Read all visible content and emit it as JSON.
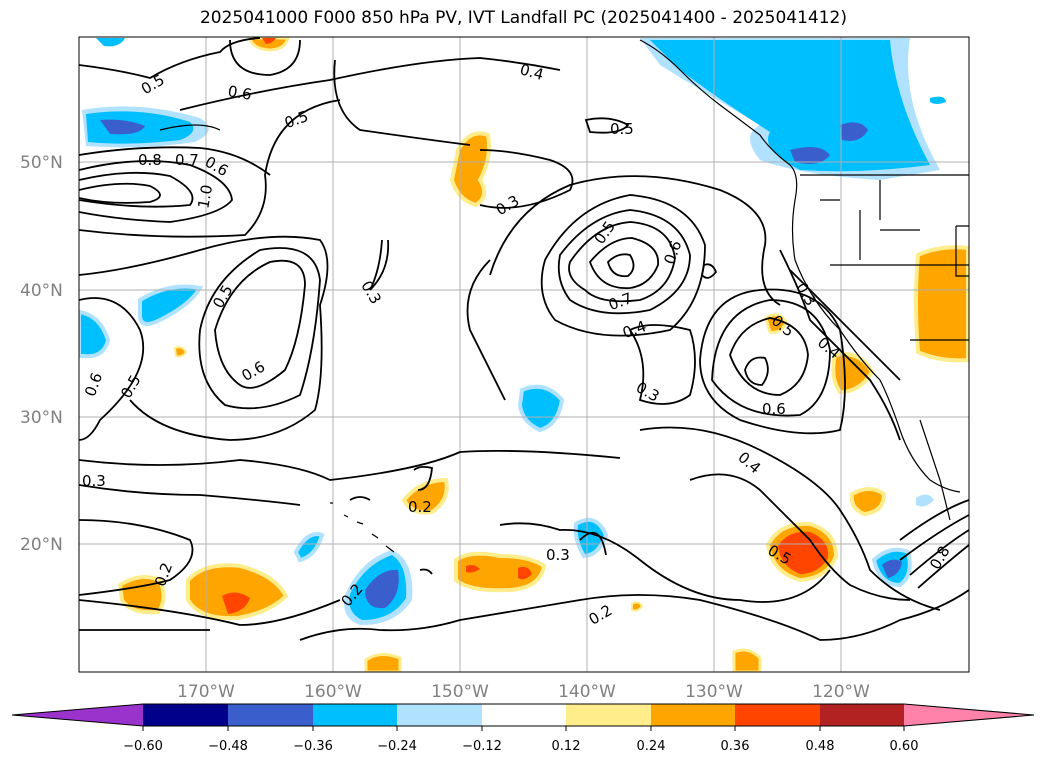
{
  "title": "2025041000 F000 850 hPa PV, IVT Landfall PC (2025041400 - 2025041412)",
  "latitude_labels": [
    "50°N",
    "40°N",
    "30°N",
    "20°N"
  ],
  "longitude_labels": [
    "170°W",
    "160°W",
    "150°W",
    "140°W",
    "130°W",
    "120°W"
  ],
  "contour_labels": [
    "0.5",
    "0.6",
    "0.5",
    "0.4",
    "0.5",
    "0.8",
    "0.7",
    "0.6",
    "1.0",
    "0.3",
    "0.5",
    "0.6",
    "0.7",
    "0.4",
    "0.3",
    "0.5",
    "0.6",
    "0.3",
    "0.5",
    "0.6",
    "0.5",
    "0.6",
    "0.3",
    "0.2",
    "0.3",
    "0.2",
    "0.2",
    "0.4",
    "0.5",
    "0.3",
    "0.4",
    "0.2",
    "0.8"
  ],
  "colorbar": {
    "colors": [
      "#9933cc",
      "#00008b",
      "#3a5fcd",
      "#00bfff",
      "#b0e2ff",
      "#ffffff",
      "#ffec8b",
      "#ffa500",
      "#ff4500",
      "#b22222",
      "#ff82ab"
    ],
    "ticks": [
      "−0.60",
      "−0.48",
      "−0.36",
      "−0.24",
      "−0.12",
      "0.12",
      "0.24",
      "0.36",
      "0.48",
      "0.60"
    ]
  },
  "map_style": {
    "projection": "plate-carree",
    "extent": {
      "lon": [
        -180,
        -110
      ],
      "lat": [
        10,
        60
      ]
    },
    "gridlines": true,
    "contour_color": "#000000",
    "coastline_color": "#000000"
  }
}
